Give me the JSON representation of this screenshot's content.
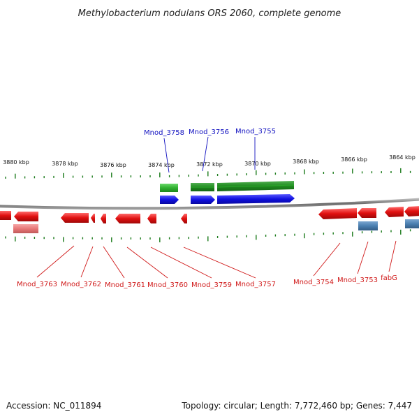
{
  "title": "Methylobacterium nodulans ORS 2060, complete genome",
  "ticks": [
    "3880 kbp",
    "3878 kbp",
    "3876 kbp",
    "3874 kbp",
    "3872 kbp",
    "3870 kbp",
    "3868 kbp",
    "3866 kbp",
    "3864 kbp"
  ],
  "top_labels": [
    "Mnod_3758",
    "Mnod_3756",
    "Mnod_3755"
  ],
  "bottom_labels": [
    "Mnod_3763",
    "Mnod_3762",
    "Mnod_3761",
    "Mnod_3760",
    "Mnod_3759",
    "Mnod_3757",
    "Mnod_3754",
    "Mnod_3753",
    "fabG"
  ],
  "footer": {
    "accession": "Accession: NC_011894",
    "summary": "Topology: circular; Length: 7,772,460 bp; Genes: 7,447"
  },
  "colors": {
    "forward_cds": "#1010e0",
    "reverse_cds": "#e01010",
    "forward_gene": "#30b030",
    "reverse_gene": "#e87878",
    "other_gene": "#4a7fb0",
    "tick": "#1a7a1a",
    "backbone": "#7a7a7a"
  }
}
